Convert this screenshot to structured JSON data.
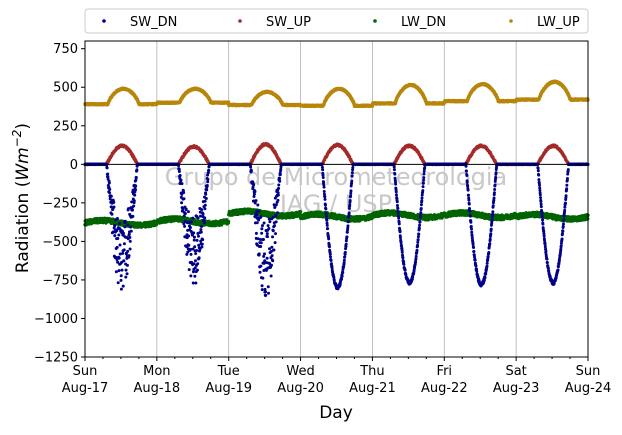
{
  "chart_data": {
    "type": "scatter",
    "xlabel": "Day",
    "ylabel": "Radiation",
    "ylabel_units_base": "Wm",
    "ylabel_units_exp": "−2",
    "ylim": [
      -1250,
      800
    ],
    "xlim": [
      "2014-08-17",
      "2014-08-24"
    ],
    "yticks": [
      "750",
      "500",
      "250",
      "0",
      "−250",
      "−500",
      "−750",
      "−1000",
      "−1250"
    ],
    "ytick_values": [
      750,
      500,
      250,
      0,
      -250,
      -500,
      -750,
      -1000,
      -1250
    ],
    "xticks": [
      {
        "day": "Sun",
        "date": "Aug-17"
      },
      {
        "day": "Mon",
        "date": "Aug-18"
      },
      {
        "day": "Tue",
        "date": "Aug-19"
      },
      {
        "day": "Wed",
        "date": "Aug-20"
      },
      {
        "day": "Thu",
        "date": "Aug-21"
      },
      {
        "day": "Fri",
        "date": "Aug-22"
      },
      {
        "day": "Sat",
        "date": "Aug-23"
      },
      {
        "day": "Sun",
        "date": "Aug-24"
      }
    ],
    "grid": "vertical",
    "legend_position": "top",
    "watermark": [
      "Grupo de Micrometeorologia",
      "IAG / USP"
    ],
    "series": [
      {
        "name": "SW_DN",
        "color": "#00008b",
        "daily_min": [
          -800,
          -760,
          -840,
          -800,
          -770,
          -780,
          -770
        ]
      },
      {
        "name": "SW_UP",
        "color": "#a52a2a",
        "daily_max": [
          120,
          115,
          130,
          125,
          120,
          120,
          120
        ]
      },
      {
        "name": "LW_DN",
        "color": "#006400",
        "daily_mean": [
          -380,
          -370,
          -320,
          -340,
          -330,
          -330,
          -340
        ]
      },
      {
        "name": "LW_UP",
        "color": "#b8860b",
        "daily_night": [
          390,
          400,
          385,
          380,
          395,
          410,
          420
        ],
        "daily_peak": [
          490,
          490,
          470,
          490,
          515,
          520,
          535
        ]
      }
    ]
  }
}
